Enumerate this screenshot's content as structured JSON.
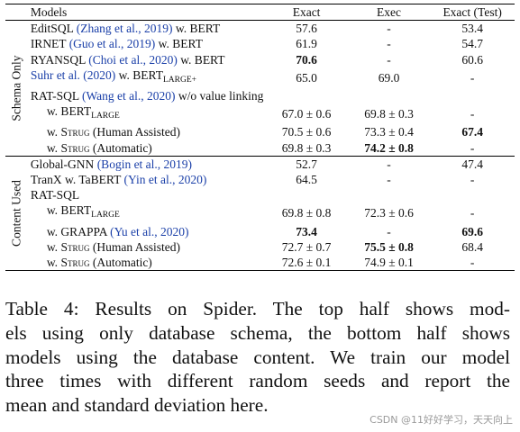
{
  "table": {
    "headers": [
      "Models",
      "Exact",
      "Exec",
      "Exact (Test)"
    ],
    "groups": [
      {
        "label": "Schema Only",
        "rows": [
          {
            "pre": "EditSQL ",
            "cite": "(Zhang et al., 2019)",
            "post": " w. BERT",
            "exact": "57.6",
            "exec": "-",
            "test": "53.4",
            "bold": []
          },
          {
            "pre": "IRNET ",
            "cite": "(Guo et al., 2019)",
            "post": " w. BERT",
            "exact": "61.9",
            "exec": "-",
            "test": "54.7",
            "bold": []
          },
          {
            "pre": "RYANSQL ",
            "cite": "(Choi et al., 2020)",
            "post": " w. BERT",
            "exact": "70.6",
            "exec": "-",
            "test": "60.6",
            "bold": [
              "exact"
            ]
          },
          {
            "pre": "",
            "cite": "Suhr et al. (2020)",
            "post": " w. BERT",
            "sub": "LARGE+",
            "exact": "65.0",
            "exec": "69.0",
            "test": "-",
            "bold": []
          },
          {
            "pre": "RAT-SQL ",
            "cite": "(Wang et al., 2020)",
            "post": " w/o value linking",
            "exact": "",
            "exec": "",
            "test": "",
            "bold": []
          },
          {
            "indent": true,
            "pre": "w. BERT",
            "sub": "LARGE",
            "exact": "67.0 ± 0.6",
            "exec": "69.8 ± 0.3",
            "test": "-",
            "bold": []
          },
          {
            "indent": true,
            "pre": "w. ",
            "sc": "Strug",
            "post": " (Human Assisted)",
            "exact": "70.5 ± 0.6",
            "exec": "73.3 ± 0.4",
            "test": "67.4",
            "bold": [
              "test"
            ]
          },
          {
            "indent": true,
            "pre": "w. ",
            "sc": "Strug",
            "post": " (Automatic)",
            "exact": "69.8 ± 0.3",
            "exec": "74.2 ± 0.8",
            "test": "-",
            "bold": [
              "exec"
            ]
          }
        ]
      },
      {
        "label": "Content Used",
        "rows": [
          {
            "pre": "Global-GNN ",
            "cite": "(Bogin et al., 2019)",
            "exact": "52.7",
            "exec": "-",
            "test": "47.4",
            "bold": []
          },
          {
            "pre": "TranX w. TaBERT ",
            "cite": "(Yin et al., 2020)",
            "exact": "64.5",
            "exec": "-",
            "test": "-",
            "bold": []
          },
          {
            "pre": "RAT-SQL",
            "exact": "",
            "exec": "",
            "test": "",
            "bold": []
          },
          {
            "indent": true,
            "pre": "w. BERT",
            "sub": "LARGE",
            "exact": "69.8 ± 0.8",
            "exec": "72.3 ± 0.6",
            "test": "-",
            "bold": []
          },
          {
            "indent": true,
            "pre": "w. GRAPPA ",
            "cite": "(Yu et al., 2020)",
            "exact": "73.4",
            "exec": "-",
            "test": "69.6",
            "bold": [
              "exact",
              "test"
            ]
          },
          {
            "indent": true,
            "pre": "w. ",
            "sc": "Strug",
            "post": " (Human Assisted)",
            "exact": "72.7 ± 0.7",
            "exec": "75.5 ± 0.8",
            "test": "68.4",
            "bold": [
              "exec"
            ]
          },
          {
            "indent": true,
            "pre": "w. ",
            "sc": "Strug",
            "post": " (Automatic)",
            "exact": "72.6 ± 0.1",
            "exec": "74.9 ± 0.1",
            "test": "-",
            "bold": []
          }
        ]
      }
    ]
  },
  "caption": {
    "lines": [
      "Table 4: Results on Spider. The top half shows mod-",
      "els using only database schema, the bottom half shows",
      "models using the database content. We train our model",
      "three times with different random seeds and report the",
      "mean and standard deviation here."
    ]
  },
  "watermark": "CSDN @11好好学习，天天向上"
}
